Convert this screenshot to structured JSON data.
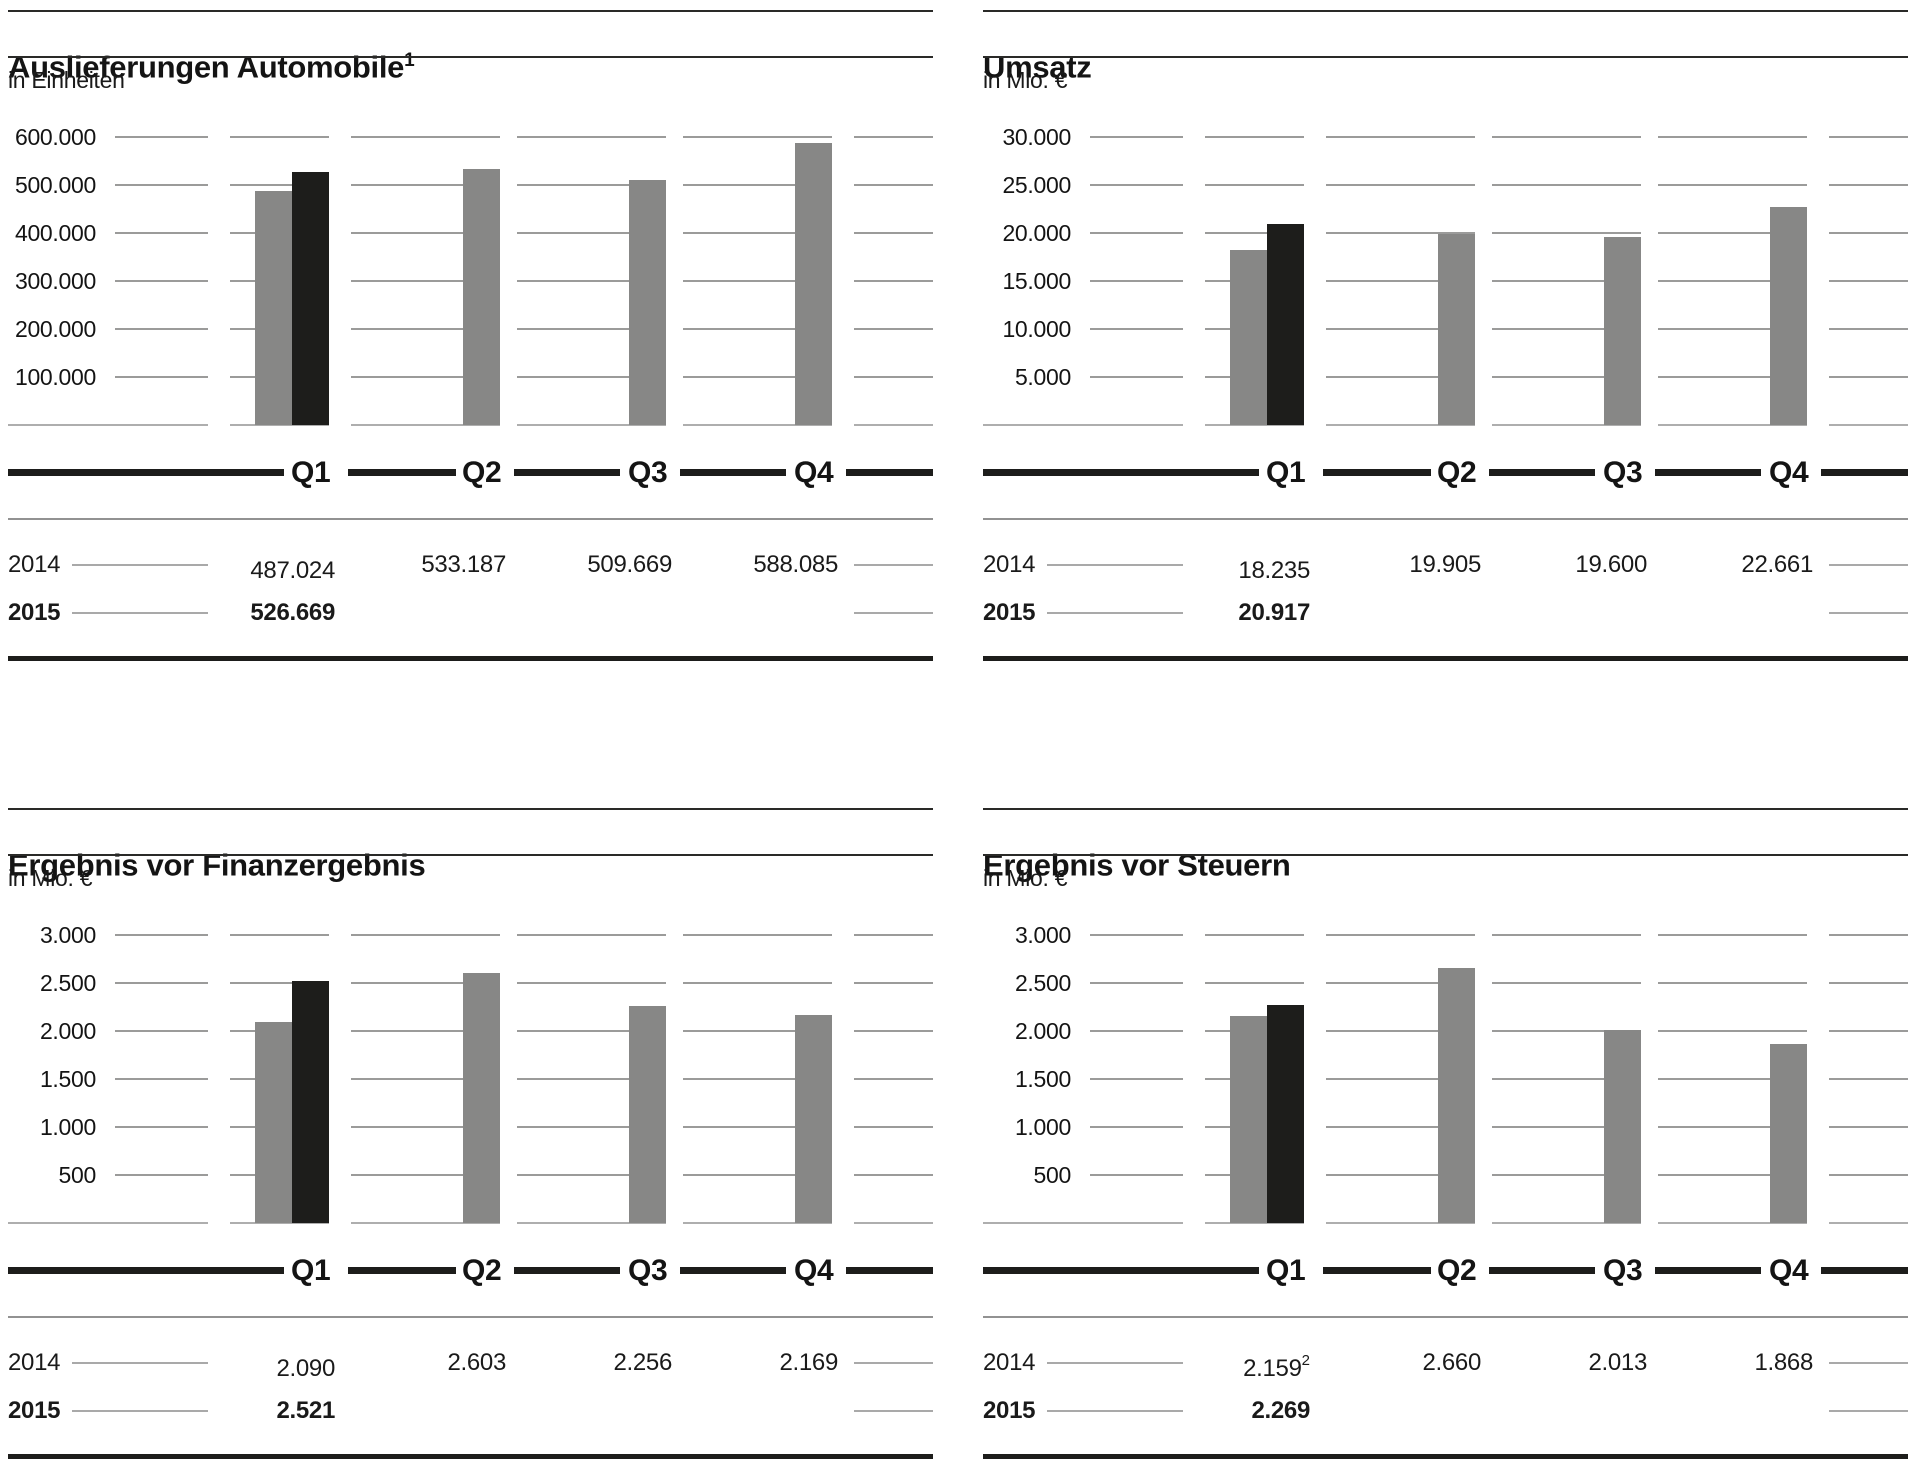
{
  "page": {
    "background": "#ffffff"
  },
  "colors": {
    "bar_2014": "#878786",
    "bar_2015": "#1d1d1b",
    "gridline": "#9b9b9a",
    "axis_line": "#1d1d1b",
    "text": "#141414"
  },
  "charts": [
    {
      "title": "Auslieferungen Automobile",
      "title_sup": "1",
      "unit": "in Einheiten",
      "y_ticks": [
        "600.000",
        "500.000",
        "400.000",
        "300.000",
        "200.000",
        "100.000"
      ],
      "quarters": [
        "Q1",
        "Q2",
        "Q3",
        "Q4"
      ],
      "row_2014": {
        "label": "2014",
        "values": [
          "487.024",
          "533.187",
          "509.669",
          "588.085"
        ]
      },
      "row_2015": {
        "label": "2015",
        "values": [
          "526.669"
        ]
      }
    },
    {
      "title": "Umsatz",
      "unit": "in Mio. €",
      "y_ticks": [
        "30.000",
        "25.000",
        "20.000",
        "15.000",
        "10.000",
        "5.000"
      ],
      "quarters": [
        "Q1",
        "Q2",
        "Q3",
        "Q4"
      ],
      "row_2014": {
        "label": "2014",
        "values": [
          "18.235",
          "19.905",
          "19.600",
          "22.661"
        ]
      },
      "row_2015": {
        "label": "2015",
        "values": [
          "20.917"
        ]
      }
    },
    {
      "title": "Ergebnis vor Finanzergebnis",
      "unit": "in Mio. €",
      "y_ticks": [
        "3.000",
        "2.500",
        "2.000",
        "1.500",
        "1.000",
        "500"
      ],
      "quarters": [
        "Q1",
        "Q2",
        "Q3",
        "Q4"
      ],
      "row_2014": {
        "label": "2014",
        "values": [
          "2.090",
          "2.603",
          "2.256",
          "2.169"
        ]
      },
      "row_2015": {
        "label": "2015",
        "values": [
          "2.521"
        ]
      }
    },
    {
      "title": "Ergebnis vor Steuern",
      "unit": "in Mio. €",
      "y_ticks": [
        "3.000",
        "2.500",
        "2.000",
        "1.500",
        "1.000",
        "500"
      ],
      "quarters": [
        "Q1",
        "Q2",
        "Q3",
        "Q4"
      ],
      "row_2014": {
        "label": "2014",
        "values": [
          "2.159",
          "2.660",
          "2.013",
          "1.868"
        ],
        "value_sup": "2"
      },
      "row_2015": {
        "label": "2015",
        "values": [
          "2.269"
        ]
      }
    }
  ],
  "chart_data": [
    {
      "type": "bar",
      "title": "Auslieferungen Automobile",
      "ylabel": "in Einheiten",
      "categories": [
        "Q1",
        "Q2",
        "Q3",
        "Q4"
      ],
      "series": [
        {
          "name": "2014",
          "values": [
            487024,
            533187,
            509669,
            588085
          ]
        },
        {
          "name": "2015",
          "values": [
            526669,
            null,
            null,
            null
          ]
        }
      ],
      "y_axis_top": 600000,
      "y_tick_step": 100000,
      "ylim": [
        0,
        600000
      ],
      "grid": true,
      "legend_position": "table-below"
    },
    {
      "type": "bar",
      "title": "Umsatz",
      "ylabel": "in Mio. €",
      "categories": [
        "Q1",
        "Q2",
        "Q3",
        "Q4"
      ],
      "series": [
        {
          "name": "2014",
          "values": [
            18235,
            19905,
            19600,
            22661
          ]
        },
        {
          "name": "2015",
          "values": [
            20917,
            null,
            null,
            null
          ]
        }
      ],
      "y_axis_top": 30000,
      "y_tick_step": 5000,
      "ylim": [
        0,
        30000
      ],
      "grid": true,
      "legend_position": "table-below"
    },
    {
      "type": "bar",
      "title": "Ergebnis vor Finanzergebnis",
      "ylabel": "in Mio. €",
      "categories": [
        "Q1",
        "Q2",
        "Q3",
        "Q4"
      ],
      "series": [
        {
          "name": "2014",
          "values": [
            2090,
            2603,
            2256,
            2169
          ]
        },
        {
          "name": "2015",
          "values": [
            2521,
            null,
            null,
            null
          ]
        }
      ],
      "y_axis_top": 3000,
      "y_tick_step": 500,
      "ylim": [
        0,
        3000
      ],
      "grid": true,
      "legend_position": "table-below"
    },
    {
      "type": "bar",
      "title": "Ergebnis vor Steuern",
      "ylabel": "in Mio. €",
      "categories": [
        "Q1",
        "Q2",
        "Q3",
        "Q4"
      ],
      "series": [
        {
          "name": "2014",
          "values": [
            2159,
            2660,
            2013,
            1868
          ]
        },
        {
          "name": "2015",
          "values": [
            2269,
            null,
            null,
            null
          ]
        }
      ],
      "y_axis_top": 3000,
      "y_tick_step": 500,
      "ylim": [
        0,
        3000
      ],
      "grid": true,
      "legend_position": "table-below"
    }
  ]
}
